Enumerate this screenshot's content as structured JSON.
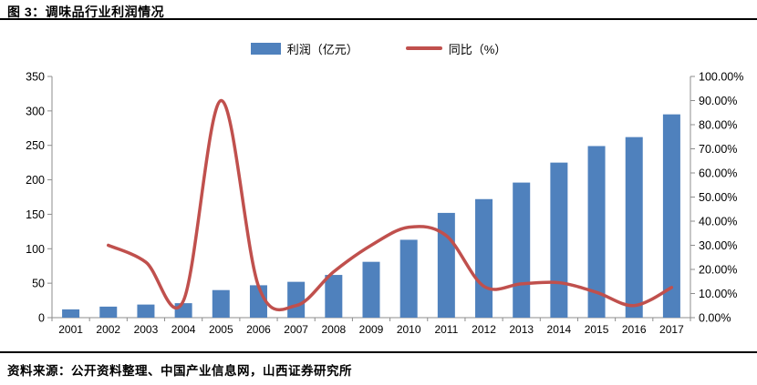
{
  "header": {
    "title": "图 3：调味品行业利润情况"
  },
  "footer": {
    "source": "资料来源：公开资料整理、中国产业信息网，山西证券研究所"
  },
  "legend": [
    {
      "label": "利润（亿元）",
      "type": "bar",
      "color": "#4F81BD"
    },
    {
      "label": "同比（%）",
      "type": "line",
      "color": "#C0504D"
    }
  ],
  "colors": {
    "bar": "#4F81BD",
    "line": "#C0504D",
    "axis": "#8C8C8C",
    "text": "#000000"
  },
  "chart_data": {
    "type": "bar",
    "title": "调味品行业利润情况",
    "categories": [
      "2001",
      "2002",
      "2003",
      "2004",
      "2005",
      "2006",
      "2007",
      "2008",
      "2009",
      "2010",
      "2011",
      "2012",
      "2013",
      "2014",
      "2015",
      "2016",
      "2017"
    ],
    "series": [
      {
        "name": "利润（亿元）",
        "type": "bar",
        "axis": "left",
        "values": [
          12,
          16,
          19,
          21,
          40,
          47,
          52,
          62,
          81,
          113,
          152,
          172,
          196,
          225,
          249,
          262,
          295
        ]
      },
      {
        "name": "同比（%）",
        "type": "line",
        "axis": "right",
        "values": [
          null,
          30,
          23,
          7,
          90,
          13,
          5,
          19,
          30,
          37.5,
          34,
          13,
          14,
          14.5,
          10.5,
          5,
          12.5
        ]
      }
    ],
    "left_axis": {
      "min": 0,
      "max": 350,
      "step": 50,
      "ticks": [
        "350",
        "300",
        "250",
        "200",
        "150",
        "100",
        "50",
        "0"
      ]
    },
    "right_axis": {
      "min": 0,
      "max": 100,
      "step": 10,
      "ticks": [
        "100.00%",
        "90.00%",
        "80.00%",
        "70.00%",
        "60.00%",
        "50.00%",
        "40.00%",
        "30.00%",
        "20.00%",
        "10.00%",
        "0.00%"
      ]
    },
    "grid": "off",
    "legend_position": "top-center"
  }
}
